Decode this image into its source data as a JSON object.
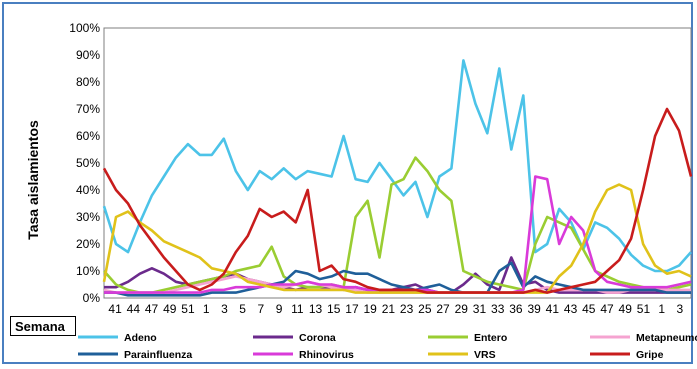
{
  "chart_data": {
    "type": "line",
    "xlabel": "Semana",
    "ylabel": "Tasa aislamientos",
    "ylim": [
      0,
      100
    ],
    "y_ticks": [
      "0%",
      "10%",
      "20%",
      "30%",
      "40%",
      "50%",
      "60%",
      "70%",
      "80%",
      "90%",
      "100%"
    ],
    "x_ticks": [
      "41",
      "44",
      "47",
      "49",
      "51",
      "1",
      "3",
      "5",
      "7",
      "9",
      "11",
      "13",
      "15",
      "17",
      "19",
      "21",
      "23",
      "25",
      "27",
      "29",
      "31",
      "33",
      "36",
      "39",
      "41",
      "43",
      "45",
      "47",
      "49",
      "51",
      "1",
      "3"
    ],
    "legend_position": "bottom",
    "series": [
      {
        "name": "Adeno",
        "color": "#4cc3e8",
        "values": [
          34,
          20,
          17,
          28,
          38,
          45,
          52,
          57,
          53,
          53,
          59,
          47,
          40,
          47,
          44,
          48,
          44,
          47,
          46,
          45,
          60,
          44,
          43,
          50,
          44,
          38,
          43,
          30,
          45,
          48,
          88,
          72,
          61,
          85,
          55,
          75,
          17,
          20,
          33,
          28,
          18,
          28,
          26,
          22,
          16,
          12,
          10,
          10,
          12,
          17
        ]
      },
      {
        "name": "Corona",
        "color": "#6b2a8c",
        "values": [
          4,
          4,
          6,
          9,
          11,
          9,
          6,
          5,
          6,
          7,
          8,
          9,
          7,
          6,
          5,
          4,
          3,
          4,
          4,
          4,
          3,
          4,
          3,
          3,
          3,
          4,
          5,
          3,
          2,
          2,
          5,
          9,
          5,
          3,
          15,
          5,
          6,
          3,
          2,
          2,
          2,
          2,
          2,
          2,
          2,
          2,
          2,
          2,
          2,
          2
        ]
      },
      {
        "name": "Entero",
        "color": "#9acd32",
        "values": [
          10,
          5,
          3,
          2,
          2,
          3,
          4,
          5,
          6,
          7,
          8,
          10,
          11,
          12,
          19,
          8,
          5,
          4,
          4,
          5,
          4,
          30,
          36,
          15,
          42,
          44,
          52,
          47,
          40,
          36,
          10,
          8,
          6,
          5,
          4,
          3,
          20,
          30,
          28,
          26,
          18,
          10,
          8,
          6,
          5,
          4,
          3,
          3,
          4,
          5
        ]
      },
      {
        "name": "Metapneumo",
        "color": "#f5a3d0",
        "values": [
          3,
          2,
          2,
          2,
          2,
          2,
          3,
          4,
          5,
          6,
          7,
          8,
          7,
          6,
          5,
          4,
          5,
          6,
          5,
          4,
          3,
          3,
          2,
          2,
          2,
          2,
          2,
          2,
          2,
          2,
          2,
          2,
          2,
          2,
          2,
          2,
          3,
          4,
          3,
          3,
          3,
          3,
          2,
          2,
          3,
          3,
          3,
          3,
          3,
          3
        ]
      },
      {
        "name": "Parainfluenza",
        "color": "#1f5f99",
        "values": [
          2,
          2,
          1,
          1,
          1,
          1,
          1,
          1,
          1,
          2,
          2,
          2,
          3,
          4,
          5,
          6,
          10,
          9,
          7,
          8,
          10,
          9,
          9,
          7,
          5,
          4,
          3,
          4,
          5,
          3,
          2,
          2,
          2,
          10,
          13,
          4,
          8,
          6,
          5,
          4,
          3,
          3,
          3,
          3,
          3,
          3,
          3,
          2,
          2,
          2
        ]
      },
      {
        "name": "Rhinovirus",
        "color": "#d93ad9",
        "values": [
          2,
          2,
          2,
          2,
          2,
          2,
          2,
          2,
          2,
          3,
          3,
          4,
          4,
          4,
          5,
          5,
          5,
          6,
          5,
          5,
          4,
          4,
          3,
          3,
          3,
          3,
          3,
          3,
          2,
          2,
          2,
          2,
          2,
          2,
          2,
          3,
          45,
          44,
          20,
          30,
          25,
          10,
          6,
          5,
          4,
          4,
          4,
          4,
          5,
          6
        ]
      },
      {
        "name": "VRS",
        "color": "#e0c21a",
        "values": [
          6,
          30,
          32,
          28,
          25,
          21,
          19,
          17,
          15,
          11,
          10,
          9,
          6,
          5,
          4,
          3,
          3,
          3,
          3,
          3,
          3,
          2,
          2,
          2,
          2,
          2,
          2,
          2,
          2,
          2,
          2,
          2,
          2,
          2,
          2,
          2,
          2,
          2,
          8,
          12,
          20,
          32,
          40,
          42,
          40,
          20,
          12,
          9,
          10,
          8
        ]
      },
      {
        "name": "Gripe",
        "color": "#c81c1c",
        "values": [
          48,
          40,
          35,
          27,
          21,
          15,
          10,
          5,
          3,
          5,
          9,
          17,
          23,
          33,
          30,
          32,
          28,
          40,
          10,
          12,
          7,
          6,
          4,
          3,
          3,
          3,
          3,
          2,
          2,
          2,
          2,
          2,
          2,
          2,
          2,
          2,
          3,
          2,
          3,
          4,
          5,
          6,
          10,
          14,
          22,
          40,
          60,
          70,
          62,
          45
        ]
      }
    ]
  }
}
